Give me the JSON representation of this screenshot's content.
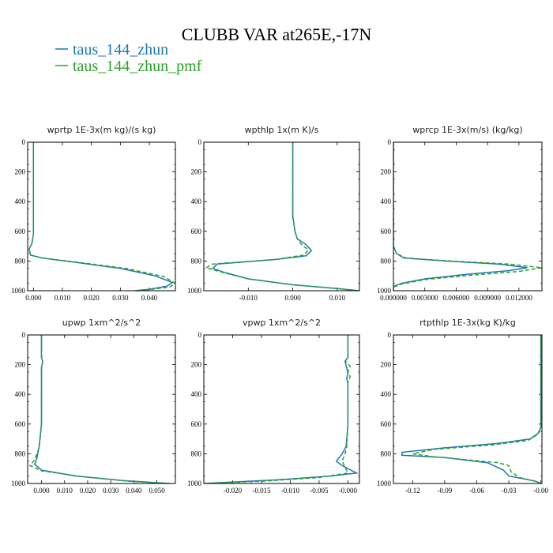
{
  "figure": {
    "title": "CLUBB VAR at265E,-17N",
    "legend": [
      {
        "label": "taus_144_zhun",
        "color": "#1f77b4",
        "dash": false
      },
      {
        "label": "taus_144_zhun_pmf",
        "color": "#2ca02c",
        "dash": true
      }
    ]
  },
  "chart_data": [
    {
      "type": "line",
      "title": "wprtp  1E-3x(m kg)/(s kg)",
      "xlim": [
        -0.002,
        0.049
      ],
      "ylim": [
        1000,
        0
      ],
      "xticks": [
        0.0,
        0.01,
        0.02,
        0.03,
        0.04
      ],
      "xtick_labels": [
        "0.000",
        "0.010",
        "0.020",
        "0.030",
        "0.040"
      ],
      "yticks": [
        0,
        200,
        400,
        600,
        800,
        1000
      ],
      "series": [
        {
          "name": "taus_144_zhun",
          "points": [
            [
              0.0,
              0
            ],
            [
              0.0,
              300
            ],
            [
              0.0,
              550
            ],
            [
              0.0,
              620
            ],
            [
              -0.0005,
              680
            ],
            [
              -0.0015,
              720
            ],
            [
              -0.001,
              760
            ],
            [
              0.003,
              780
            ],
            [
              0.015,
              810
            ],
            [
              0.03,
              850
            ],
            [
              0.042,
              900
            ],
            [
              0.048,
              945
            ],
            [
              0.046,
              970
            ],
            [
              0.04,
              990
            ],
            [
              0.035,
              1000
            ]
          ]
        },
        {
          "name": "taus_144_zhun_pmf",
          "points": [
            [
              0.0,
              0
            ],
            [
              0.0,
              300
            ],
            [
              0.0,
              550
            ],
            [
              0.0,
              620
            ],
            [
              -0.0005,
              680
            ],
            [
              -0.0015,
              720
            ],
            [
              -0.001,
              760
            ],
            [
              0.003,
              780
            ],
            [
              0.016,
              810
            ],
            [
              0.032,
              850
            ],
            [
              0.045,
              905
            ],
            [
              0.049,
              950
            ],
            [
              0.047,
              975
            ],
            [
              0.041,
              990
            ],
            [
              0.036,
              1000
            ]
          ]
        }
      ]
    },
    {
      "type": "line",
      "title": "wpthlp  1x(m K)/s",
      "xlim": [
        -0.02,
        0.015
      ],
      "ylim": [
        1000,
        0
      ],
      "xticks": [
        -0.01,
        0.0,
        0.01
      ],
      "xtick_labels": [
        "-0.010",
        "0.000",
        "0.010"
      ],
      "yticks": [
        0,
        200,
        400,
        600,
        800,
        1000
      ],
      "series": [
        {
          "name": "taus_144_zhun",
          "points": [
            [
              0.0,
              0
            ],
            [
              0.0,
              300
            ],
            [
              0.0,
              500
            ],
            [
              0.0005,
              600
            ],
            [
              0.001,
              650
            ],
            [
              0.003,
              690
            ],
            [
              0.0042,
              730
            ],
            [
              0.003,
              765
            ],
            [
              -0.004,
              790
            ],
            [
              -0.017,
              820
            ],
            [
              -0.018,
              850
            ],
            [
              -0.015,
              880
            ],
            [
              -0.01,
              920
            ],
            [
              0.0,
              960
            ],
            [
              0.01,
              985
            ],
            [
              0.015,
              1000
            ]
          ]
        },
        {
          "name": "taus_144_zhun_pmf",
          "points": [
            [
              0.0,
              0
            ],
            [
              0.0,
              300
            ],
            [
              0.0,
              500
            ],
            [
              0.0005,
              600
            ],
            [
              0.001,
              650
            ],
            [
              0.002,
              690
            ],
            [
              0.0035,
              725
            ],
            [
              0.0025,
              760
            ],
            [
              -0.004,
              790
            ],
            [
              -0.018,
              820
            ],
            [
              -0.0195,
              845
            ],
            [
              -0.016,
              875
            ],
            [
              -0.01,
              920
            ],
            [
              0.0,
              960
            ],
            [
              0.01,
              985
            ],
            [
              0.015,
              1000
            ]
          ]
        }
      ]
    },
    {
      "type": "line",
      "title": "wprcp  1E-3x(m/s) (kg/kg)",
      "xlim": [
        0.0,
        0.0142
      ],
      "ylim": [
        1000,
        0
      ],
      "xticks": [
        0.0,
        0.003,
        0.006,
        0.009,
        0.012
      ],
      "xtick_labels": [
        "0.000000",
        "0.003000",
        "0.006000",
        "0.009000",
        "0.012000"
      ],
      "yticks": [
        0,
        200,
        400,
        600,
        800,
        1000
      ],
      "series": [
        {
          "name": "taus_144_zhun",
          "points": [
            [
              0.0,
              0
            ],
            [
              0.0,
              300
            ],
            [
              0.0,
              600
            ],
            [
              0.0,
              700
            ],
            [
              0.0003,
              750
            ],
            [
              0.001,
              780
            ],
            [
              0.005,
              800
            ],
            [
              0.01,
              820
            ],
            [
              0.0128,
              845
            ],
            [
              0.011,
              865
            ],
            [
              0.007,
              890
            ],
            [
              0.003,
              920
            ],
            [
              0.0008,
              950
            ],
            [
              0.0,
              970
            ],
            [
              0.0,
              1000
            ]
          ]
        },
        {
          "name": "taus_144_zhun_pmf",
          "points": [
            [
              0.0,
              0
            ],
            [
              0.0,
              300
            ],
            [
              0.0,
              600
            ],
            [
              0.0,
              700
            ],
            [
              0.0003,
              750
            ],
            [
              0.0012,
              780
            ],
            [
              0.0055,
              800
            ],
            [
              0.011,
              820
            ],
            [
              0.0142,
              845
            ],
            [
              0.012,
              870
            ],
            [
              0.0075,
              895
            ],
            [
              0.003,
              925
            ],
            [
              0.0008,
              955
            ],
            [
              0.0,
              975
            ],
            [
              0.0,
              1000
            ]
          ]
        }
      ]
    },
    {
      "type": "line",
      "title": "upwp  1xm^2/s^2",
      "xlim": [
        -0.006,
        0.058
      ],
      "ylim": [
        1000,
        0
      ],
      "xticks": [
        0.0,
        0.01,
        0.02,
        0.03,
        0.04,
        0.05
      ],
      "xtick_labels": [
        "0.000",
        "0.010",
        "0.020",
        "0.030",
        "0.040",
        "0.050"
      ],
      "yticks": [
        0,
        200,
        400,
        600,
        800,
        1000
      ],
      "series": [
        {
          "name": "taus_144_zhun",
          "points": [
            [
              0.0,
              0
            ],
            [
              0.0,
              150
            ],
            [
              0.0005,
              180
            ],
            [
              0.0,
              220
            ],
            [
              0.0,
              400
            ],
            [
              0.0,
              600
            ],
            [
              -0.001,
              750
            ],
            [
              -0.002,
              830
            ],
            [
              -0.003,
              870
            ],
            [
              0.0,
              910
            ],
            [
              0.015,
              950
            ],
            [
              0.035,
              980
            ],
            [
              0.055,
              1000
            ]
          ]
        },
        {
          "name": "taus_144_zhun_pmf",
          "points": [
            [
              0.0,
              0
            ],
            [
              0.0,
              150
            ],
            [
              0.0005,
              180
            ],
            [
              0.0,
              220
            ],
            [
              0.0,
              400
            ],
            [
              0.0,
              600
            ],
            [
              -0.001,
              760
            ],
            [
              -0.003,
              840
            ],
            [
              -0.005,
              880
            ],
            [
              0.0,
              915
            ],
            [
              0.018,
              955
            ],
            [
              0.038,
              985
            ],
            [
              0.056,
              1000
            ]
          ]
        }
      ]
    },
    {
      "type": "line",
      "title": "vpwp  1xm^2/s^2",
      "xlim": [
        -0.025,
        0.002
      ],
      "ylim": [
        1000,
        0
      ],
      "xticks": [
        -0.02,
        -0.015,
        -0.01,
        -0.005,
        0.0
      ],
      "xtick_labels": [
        "-0.020",
        "-0.015",
        "-0.010",
        "-0.005",
        "-0.000"
      ],
      "yticks": [
        0,
        200,
        400,
        600,
        800,
        1000
      ],
      "series": [
        {
          "name": "taus_144_zhun",
          "points": [
            [
              0.0,
              0
            ],
            [
              0.0,
              150
            ],
            [
              -0.0005,
              180
            ],
            [
              -0.0002,
              220
            ],
            [
              0.0,
              260
            ],
            [
              -0.0002,
              290
            ],
            [
              0.0,
              330
            ],
            [
              0.0,
              500
            ],
            [
              0.0,
              600
            ],
            [
              -0.0003,
              750
            ],
            [
              -0.001,
              800
            ],
            [
              -0.002,
              850
            ],
            [
              -0.001,
              880
            ],
            [
              0.0015,
              930
            ],
            [
              -0.003,
              950
            ],
            [
              -0.012,
              975
            ],
            [
              -0.025,
              1000
            ]
          ]
        },
        {
          "name": "taus_144_zhun_pmf",
          "points": [
            [
              0.0,
              0
            ],
            [
              0.0,
              150
            ],
            [
              -0.0005,
              175
            ],
            [
              0.0004,
              210
            ],
            [
              0.0,
              250
            ],
            [
              0.0004,
              280
            ],
            [
              0.0,
              320
            ],
            [
              0.0,
              500
            ],
            [
              0.0,
              600
            ],
            [
              -0.0002,
              750
            ],
            [
              -0.0005,
              800
            ],
            [
              -0.001,
              850
            ],
            [
              -0.0005,
              890
            ],
            [
              0.0,
              930
            ],
            [
              -0.005,
              960
            ],
            [
              -0.015,
              985
            ],
            [
              -0.025,
              1000
            ]
          ]
        }
      ]
    },
    {
      "type": "line",
      "title": "rtpthlp  1E-3x(kg K)/kg",
      "xlim": [
        -0.138,
        0.001
      ],
      "ylim": [
        1000,
        0
      ],
      "xticks": [
        -0.12,
        -0.09,
        -0.06,
        -0.03,
        0.0
      ],
      "xtick_labels": [
        "-0.12",
        "-0.09",
        "-0.06",
        "-0.03",
        "-0.00"
      ],
      "yticks": [
        0,
        200,
        400,
        600,
        800,
        1000
      ],
      "series": [
        {
          "name": "taus_144_zhun",
          "points": [
            [
              0.0,
              0
            ],
            [
              0.0,
              300
            ],
            [
              0.0,
              500
            ],
            [
              0.0,
              620
            ],
            [
              -0.002,
              660
            ],
            [
              -0.01,
              700
            ],
            [
              -0.04,
              730
            ],
            [
              -0.09,
              760
            ],
            [
              -0.13,
              790
            ],
            [
              -0.13,
              810
            ],
            [
              -0.09,
              825
            ],
            [
              -0.05,
              860
            ],
            [
              -0.035,
              910
            ],
            [
              -0.03,
              950
            ],
            [
              -0.015,
              970
            ],
            [
              -0.005,
              985
            ],
            [
              0.0,
              1000
            ]
          ]
        },
        {
          "name": "taus_144_zhun_pmf",
          "points": [
            [
              0.0,
              0
            ],
            [
              0.0,
              300
            ],
            [
              0.0,
              500
            ],
            [
              0.0,
              620
            ],
            [
              -0.003,
              670
            ],
            [
              -0.012,
              710
            ],
            [
              -0.045,
              740
            ],
            [
              -0.1,
              770
            ],
            [
              -0.12,
              800
            ],
            [
              -0.1,
              820
            ],
            [
              -0.07,
              840
            ],
            [
              -0.04,
              860
            ],
            [
              -0.03,
              880
            ],
            [
              -0.028,
              920
            ],
            [
              -0.02,
              960
            ],
            [
              -0.005,
              985
            ],
            [
              0.0,
              1000
            ]
          ]
        }
      ]
    }
  ]
}
